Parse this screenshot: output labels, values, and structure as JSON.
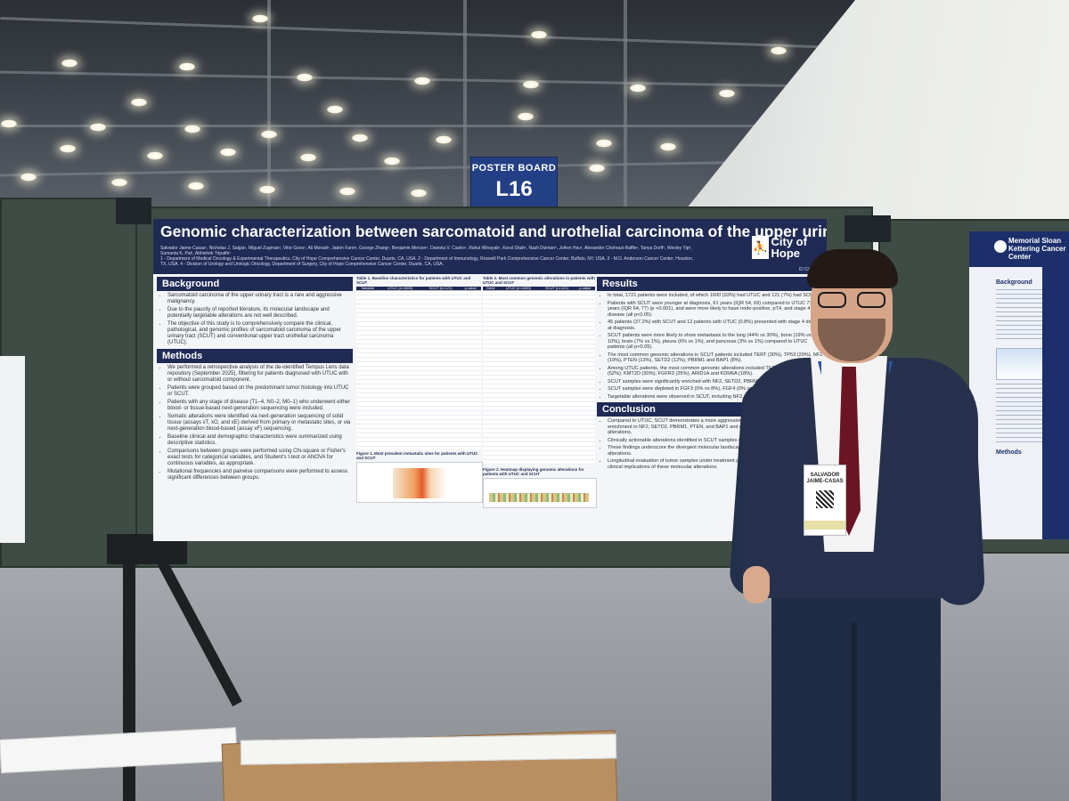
{
  "sign": {
    "line1": "POSTER BOARD",
    "line2": "L16"
  },
  "poster": {
    "title": "Genomic characterization between sarcomatoid and urothelial carcinoma of the upper urinary tract",
    "authors": "Salvador Jaime-Casas¹, Nicholas J. Salgia¹, Miguel Zugman¹, Vitor Goes¹, Ali Moradi¹, Jadon Fann¹, George Zhang¹, Benjamin Mercier¹, Daniela V. Castro¹, Rahul Winayak¹, Koral Shah¹, Nazli Dizman², JoAnn Hsu¹, Alexander Chehrazi-Raffle¹, Tanya Dorff¹, Wesley Yip³, Sumanta K. Pal¹, Abhishek Tripathi¹",
    "affiliations": "1 - Department of Medical Oncology & Experimental Therapeutics, City of Hope Comprehensive Cancer Center, Duarte, CA, USA. 2 - Department of Immunology, Roswell Park Comprehensive Cancer Center, Buffalo, NY, USA. 3 - M.D. Anderson Cancer Center, Houston, TX, USA. 4 - Division of Urology and Urologic Oncology, Department of Surgery, City of Hope Comprehensive Cancer Center, Duarte, CA, USA.",
    "logo_text": "City of Hope",
    "poster_id": "ID 524590",
    "background": {
      "heading": "Background",
      "items": [
        "Sarcomatoid carcinoma of the upper urinary tract is a rare and aggressive malignancy.",
        "Due to the paucity of reported literature, its molecular landscape and potentially targetable alterations are not well described.",
        "The objective of this study is to comprehensively compare the clinical, pathological, and genomic profiles of sarcomatoid carcinoma of the upper urinary tract (SCUT) and conventional upper tract urothelial carcinoma (UTUC)."
      ]
    },
    "methods": {
      "heading": "Methods",
      "items": [
        "We performed a retrospective analysis of the de-identified Tempus Lens data repository (September 2025), filtering for patients diagnosed with UTUC with or without sarcomatoid component.",
        "Patients were grouped based on the predominant tumor histology into UTUC or SCUT.",
        "Patients with any stage of disease (T1–4, N0–2, M0–1) who underwent either blood- or tissue-based next-generation sequencing were included.",
        "Somatic alterations were identified via next-generation sequencing of solid tissue (assays xT, xO, and xE) derived from primary or metastatic sites, or via next-generation blood-based (assay xF) sequencing.",
        "Baseline clinical and demographic characteristics were summarized using descriptive statistics.",
        "Comparisons between groups were performed using Chi-square or Fisher's exact tests for categorical variables, and Student's t-test or ANOVA for continuous variables, as appropriate.",
        "Mutational frequencies and pairwise comparisons were performed to assess significant differences between groups."
      ]
    },
    "table1": {
      "caption": "Table 1. Baseline characteristics for patients with UTUC and SCUT",
      "headers": [
        "Variable",
        "UTUC (n=1600)",
        "SCUT (n=121)",
        "p-value"
      ]
    },
    "table2": {
      "caption": "Table 2. Most common genomic alterations in patients with UTUC and SCUT",
      "headers": [
        "Gene",
        "UTUC (n=1600)",
        "SCUT (n=121)",
        "p-value"
      ]
    },
    "figure1_caption": "Figure 1. Most prevalent metastatic sites for patients with UTUC and SCUT",
    "figure2_caption": "Figure 2. Heatmap displaying genomic alterations for patients with UTUC and SCUT",
    "results": {
      "heading": "Results",
      "items": [
        "In total, 1721 patients were included, of which 1600 (93%) had UTUC and 121 (7%) had SCUT.",
        "Patients with SCUT were younger at diagnosis, 61 years (IQR 54, 69) compared to UTUC 71 years (IQR 64, 77) (p <0.001), and were more likely to have node-positive, pT4, and stage 4 disease (all p<0.05).",
        "45 patients (37.2%) with SCUT and 12 patients with UTUC (0.8%) presented with stage 4 disease at diagnosis.",
        "SCUT patients were more likely to show metastasis to the lung (44% vs 30%), bone (19% vs 10%), brain (7% vs 1%), pleura (6% vs 1%), and pancreas (3% vs 1%) compared to UTUC patients (all p<0.05).",
        "The most common genomic alterations in SCUT patients included TERT (30%), TP53 (29%), NF2 (19%), PTEN (13%), SETD2 (12%), PBRM1 and BAP1 (8%).",
        "Among UTUC patients, the most common genomic alterations included TERT (52%), TP53 (52%), KMT2D (30%), FGFR3 (25%), ARID1A and KDM6A (18%).",
        "SCUT samples were significantly enriched with NF2, SETD2, PBRM1",
        "SCUT samples were depleted in FGF3 (0% vs 8%), FGF4 (0% vs 8%), 3%).",
        "Targetable alterations were observed in SCUT, including NF2, SETD"
      ]
    },
    "conclusion": {
      "heading": "Conclusion",
      "items": [
        "Compared to UTUC, SCUT demonstrates a more aggressive clinical phenotype characterized by enrichment in NF2, SETD2, PBRM1, PTEN, and BAP1 and depletion of FGF3, FGF4, and EGFR alterations.",
        "Clinically actionable alterations identified in SCUT samples included NF2, SETD2, and PTEN.",
        "These findings underscore the divergent molecular landscape and potentially targetable genomic alterations.",
        "Longitudinal evaluation of tumor samples under treatment pressure may further validate the clinical implications of these molecular alterations."
      ]
    }
  },
  "right_poster": {
    "logo_text": "Memorial Sloan Kettering Cancer Center",
    "section": "Background",
    "section2": "Methods"
  },
  "badge": {
    "name": "SALVADOR JAIME-CASAS"
  }
}
